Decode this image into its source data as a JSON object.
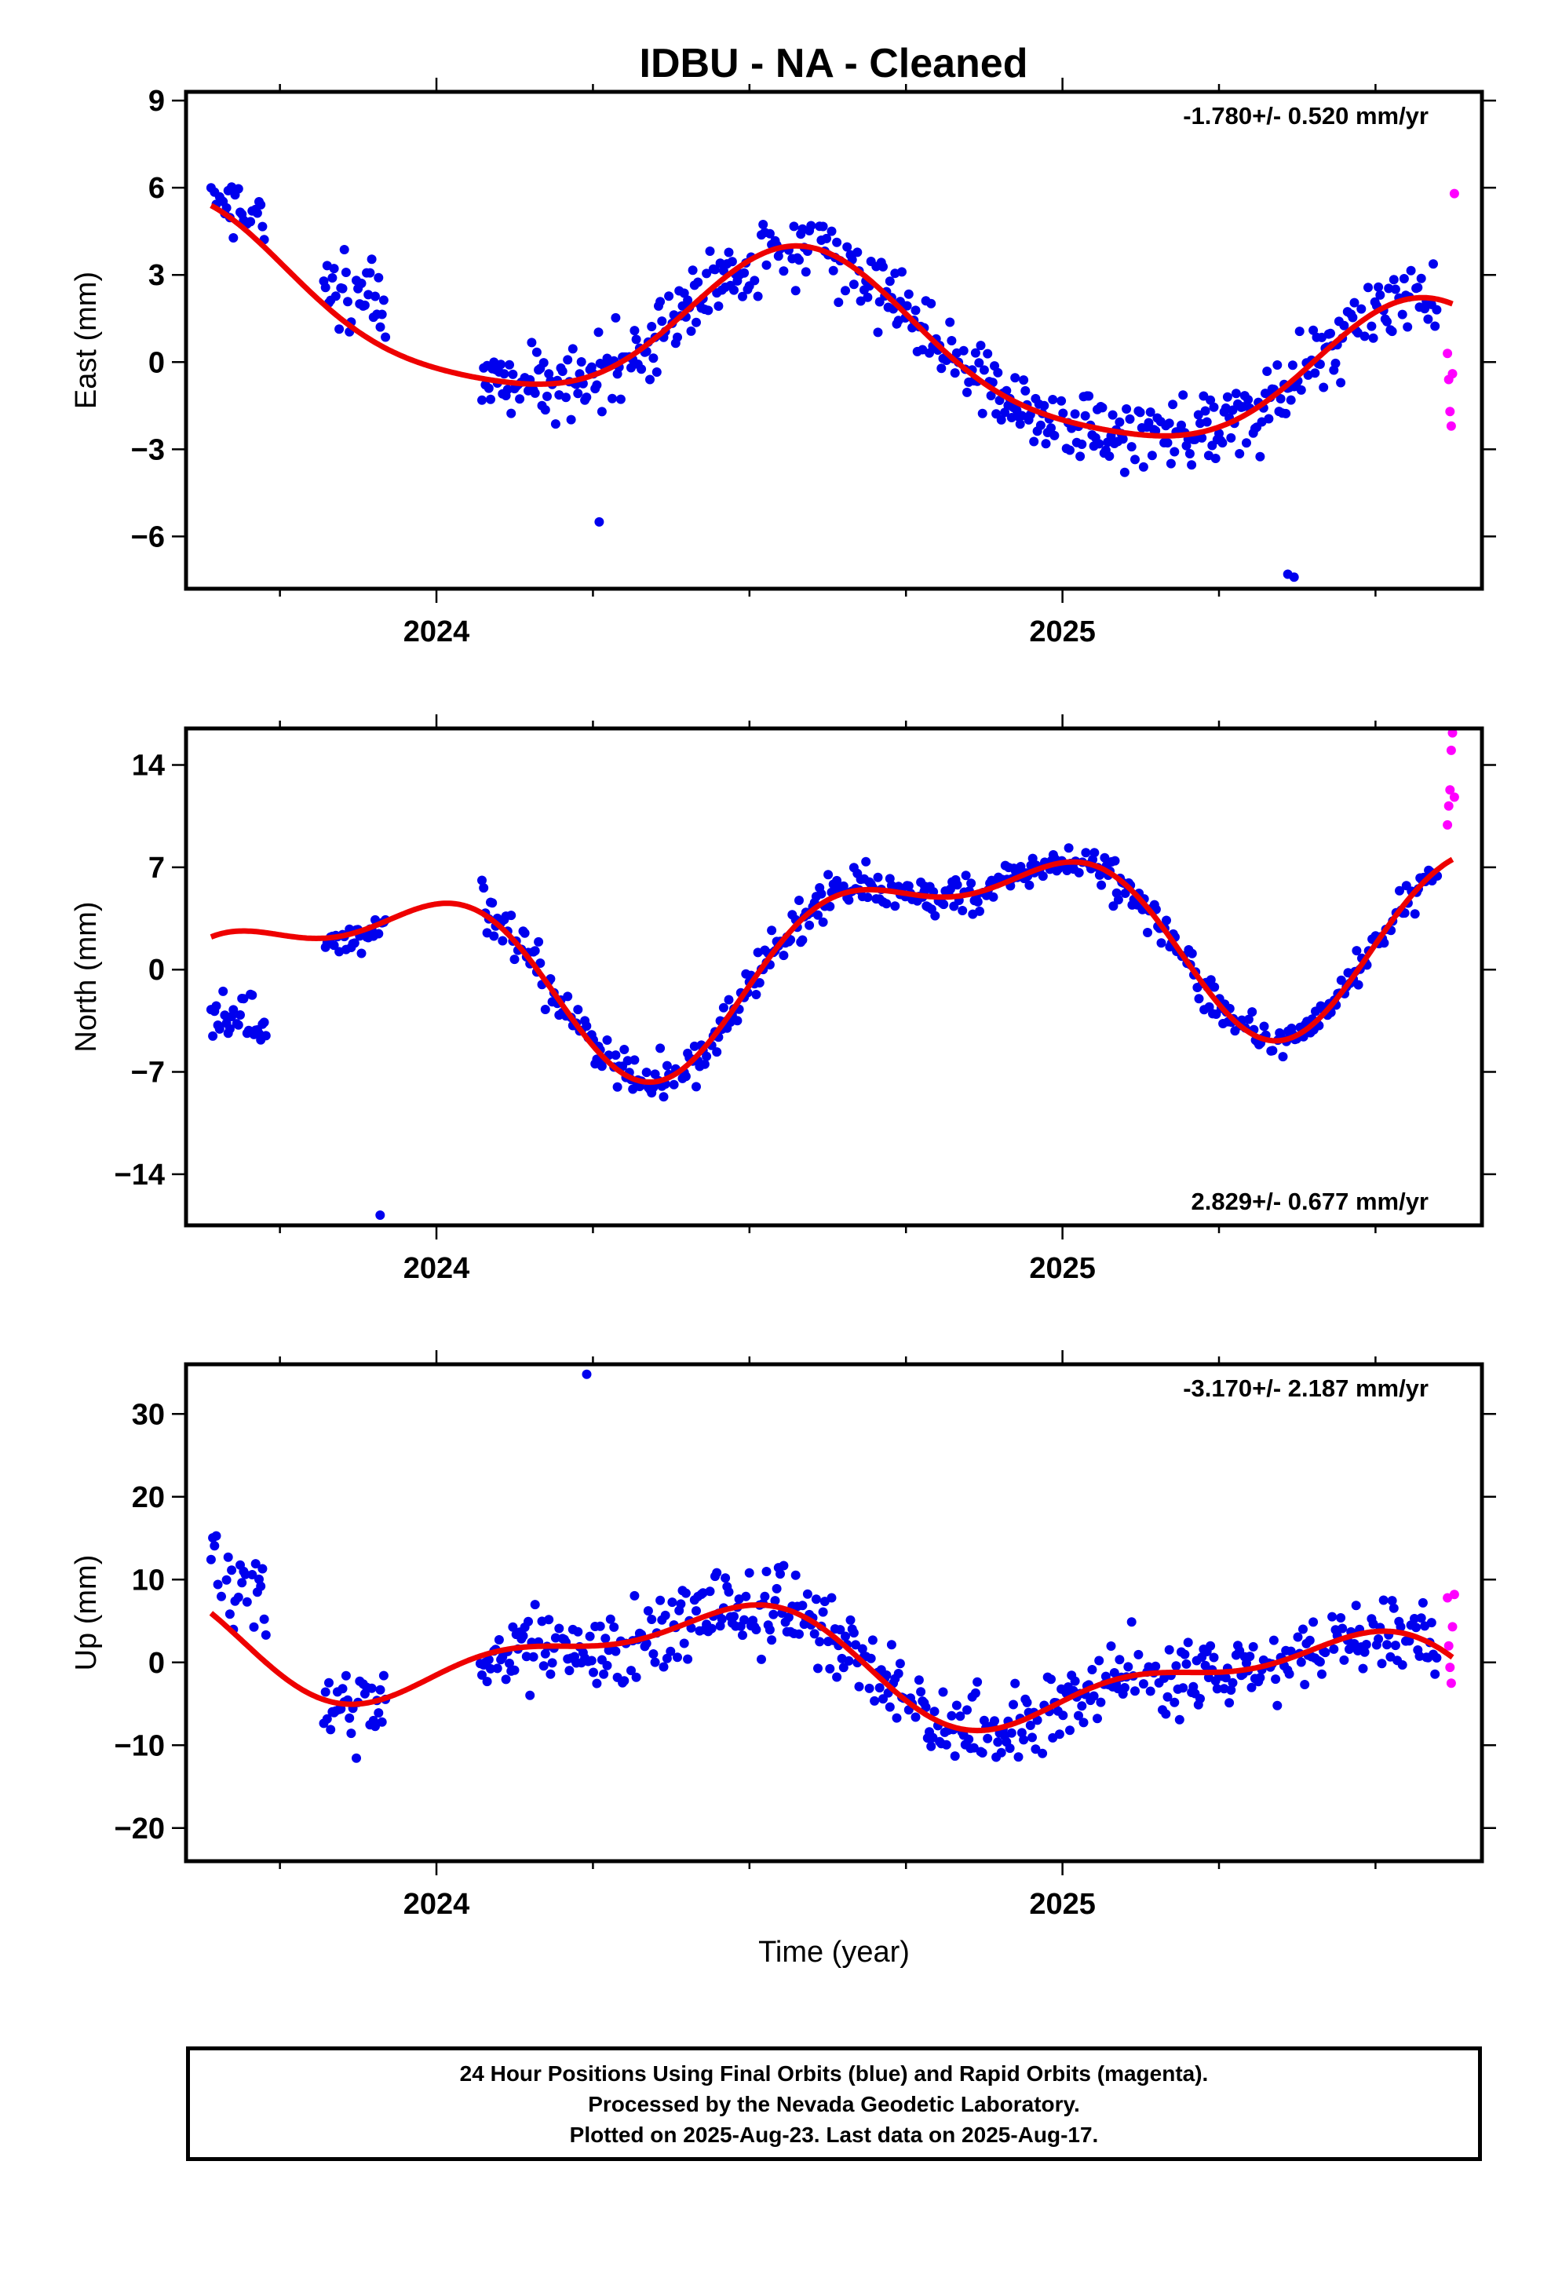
{
  "title": "IDBU  - NA - Cleaned",
  "footer": {
    "line1": "24 Hour Positions Using Final Orbits (blue) and Rapid Orbits (magenta).",
    "line2": "Processed by the Nevada Geodetic Laboratory.",
    "line3": "Plotted on 2025-Aug-23. Last data on 2025-Aug-17."
  },
  "colors": {
    "final_orbits": "#0000ee",
    "rapid_orbits": "#ff00ff",
    "fit": "#ee0000"
  },
  "chart_data": [
    {
      "type": "scatter",
      "ylabel": "East (mm)",
      "xlabel": "",
      "rate_text": "-1.780+/- 0.520 mm/yr",
      "rate_position": "top-right",
      "xlim": [
        2023.6,
        2025.67
      ],
      "ylim": [
        -7.8,
        9.3
      ],
      "xticks": [
        2024,
        2025
      ],
      "xtick_labels": [
        "2024",
        "2025"
      ],
      "yticks": [
        9,
        6,
        3,
        0,
        -3,
        -6
      ],
      "ytick_labels": [
        "9",
        "6",
        "3",
        "0",
        "−3",
        "−6"
      ],
      "grid": false,
      "model": {
        "rate": -1.78,
        "offset": 0.9,
        "annual_a": 1.5,
        "annual_b": 2.3,
        "semi_a": 0.4,
        "semi_b": 0.3
      },
      "segments": [
        {
          "start": 2023.64,
          "end": 2023.73,
          "offset": 0.4,
          "scatter": 1.0
        },
        {
          "start": 2023.82,
          "end": 2023.92,
          "offset": 0.9,
          "scatter": 1.1
        },
        {
          "start": 2024.07,
          "end": 2025.6,
          "offset": 0.0,
          "scatter": 0.9
        }
      ],
      "rapid": {
        "x": [
          2025.615,
          2025.617,
          2025.619,
          2025.621,
          2025.623,
          2025.626
        ],
        "y": [
          0.3,
          -0.6,
          -1.7,
          -2.2,
          -0.4,
          5.8
        ]
      },
      "outliers": {
        "x": [
          2024.26,
          2025.36,
          2025.37
        ],
        "y": [
          -5.5,
          -7.3,
          -7.4
        ]
      }
    },
    {
      "type": "scatter",
      "ylabel": "North (mm)",
      "xlabel": "",
      "rate_text": "2.829+/- 0.677 mm/yr",
      "rate_position": "bottom-right",
      "xlim": [
        2023.6,
        2025.67
      ],
      "ylim": [
        -17.5,
        16.5
      ],
      "xticks": [
        2024,
        2025
      ],
      "xtick_labels": [
        "2024",
        "2025"
      ],
      "yticks": [
        14,
        7,
        0,
        -7,
        -14
      ],
      "ytick_labels": [
        "14",
        "7",
        "0",
        "−7",
        "−14"
      ],
      "grid": false,
      "model": {
        "rate": 2.829,
        "offset": 1.2,
        "annual_a": 4.5,
        "annual_b": -3.5,
        "semi_a": 2.5,
        "semi_b": 1.2
      },
      "segments": [
        {
          "start": 2023.64,
          "end": 2023.73,
          "offset": -6.0,
          "scatter": 1.4
        },
        {
          "start": 2023.82,
          "end": 2023.92,
          "offset": -0.5,
          "scatter": 0.9
        },
        {
          "start": 2024.07,
          "end": 2024.78,
          "offset": 0.2,
          "scatter": 1.0
        },
        {
          "start": 2024.78,
          "end": 2025.6,
          "offset": 0.0,
          "scatter": 0.9
        }
      ],
      "rapid": {
        "x": [
          2025.615,
          2025.617,
          2025.619,
          2025.621,
          2025.623,
          2025.626
        ],
        "y": [
          9.9,
          11.2,
          12.3,
          15.0,
          16.2,
          11.8
        ]
      },
      "outliers": {
        "x": [
          2023.91
        ],
        "y": [
          -16.8
        ]
      }
    },
    {
      "type": "scatter",
      "ylabel": "Up (mm)",
      "xlabel": "Time (year)",
      "rate_text": "-3.170+/- 2.187 mm/yr",
      "rate_position": "top-right",
      "xlim": [
        2023.6,
        2025.67
      ],
      "ylim": [
        -24,
        36
      ],
      "xticks": [
        2024,
        2025
      ],
      "xtick_labels": [
        "2024",
        "2025"
      ],
      "yticks": [
        30,
        20,
        10,
        0,
        -10,
        -20
      ],
      "ytick_labels": [
        "30",
        "20",
        "10",
        "0",
        "−10",
        "−20"
      ],
      "grid": false,
      "model": {
        "rate": -3.17,
        "offset": 0.3,
        "annual_a": -2.5,
        "annual_b": 5.0,
        "semi_a": 2.0,
        "semi_b": 1.6
      },
      "segments": [
        {
          "start": 2023.64,
          "end": 2023.73,
          "offset": 8.0,
          "scatter": 4.5
        },
        {
          "start": 2023.82,
          "end": 2023.92,
          "offset": 0.0,
          "scatter": 3.5
        },
        {
          "start": 2024.07,
          "end": 2025.6,
          "offset": 0.0,
          "scatter": 3.5
        }
      ],
      "rapid": {
        "x": [
          2025.615,
          2025.617,
          2025.619,
          2025.621,
          2025.623,
          2025.626
        ],
        "y": [
          7.8,
          2.0,
          -0.6,
          -2.5,
          4.3,
          8.2
        ]
      },
      "outliers": {
        "x": [
          2024.24
        ],
        "y": [
          34.8
        ]
      }
    }
  ]
}
